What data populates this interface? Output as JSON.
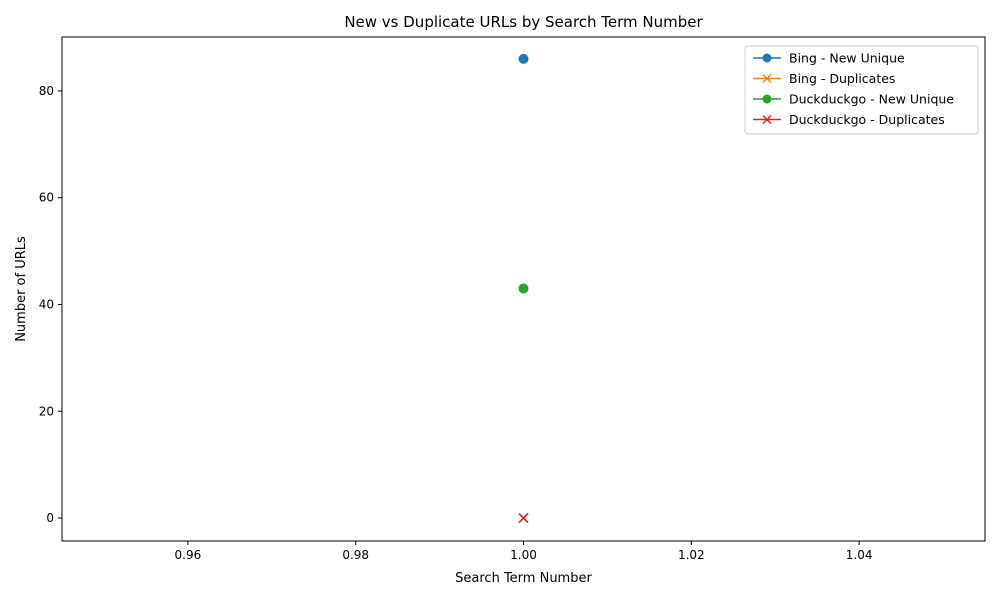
{
  "chart_data": {
    "type": "line",
    "title": "New vs Duplicate URLs by Search Term Number",
    "xlabel": "Search Term Number",
    "ylabel": "Number of URLs",
    "xlim": [
      0.945,
      1.055
    ],
    "ylim": [
      -4.3,
      90.1
    ],
    "x_ticks": [
      0.96,
      0.98,
      1.0,
      1.02,
      1.04
    ],
    "x_tick_labels": [
      "0.96",
      "0.98",
      "1.00",
      "1.02",
      "1.04"
    ],
    "y_ticks": [
      0,
      20,
      40,
      60,
      80
    ],
    "y_tick_labels": [
      "0",
      "20",
      "40",
      "60",
      "80"
    ],
    "grid": false,
    "legend_position": "top-right",
    "series": [
      {
        "name": "Bing - New Unique",
        "x": [
          1
        ],
        "y": [
          86
        ],
        "color": "#1f77b4",
        "marker": "circle"
      },
      {
        "name": "Bing - Duplicates",
        "x": [
          1
        ],
        "y": [
          0
        ],
        "color": "#ff7f0e",
        "marker": "x"
      },
      {
        "name": "Duckduckgo - New Unique",
        "x": [
          1
        ],
        "y": [
          43
        ],
        "color": "#2ca02c",
        "marker": "circle"
      },
      {
        "name": "Duckduckgo - Duplicates",
        "x": [
          1
        ],
        "y": [
          0
        ],
        "color": "#d62728",
        "marker": "x"
      }
    ]
  }
}
